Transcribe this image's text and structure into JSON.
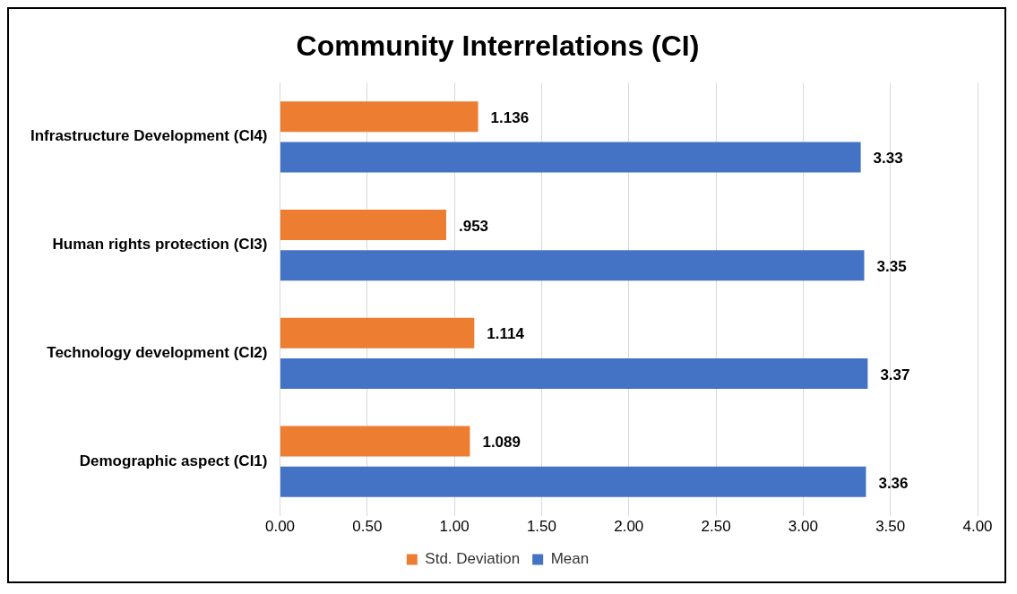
{
  "chart_data": {
    "type": "bar",
    "orientation": "horizontal",
    "title": "Community Interrelations (CI)",
    "categories": [
      "Infrastructure Development (CI4)",
      "Human rights protection (CI3)",
      "Technology development (CI2)",
      "Demographic aspect (CI1)"
    ],
    "series": [
      {
        "name": "Std. Deviation",
        "color": "#ed7d31",
        "values": [
          1.136,
          0.953,
          1.114,
          1.089
        ],
        "value_labels": [
          "1.136",
          ".953",
          "1.114",
          "1.089"
        ]
      },
      {
        "name": "Mean",
        "color": "#4472c4",
        "values": [
          3.33,
          3.35,
          3.37,
          3.36
        ],
        "value_labels": [
          "3.33",
          "3.35",
          "3.37",
          "3.36"
        ]
      }
    ],
    "xlim": [
      0,
      4
    ],
    "xticks": [
      {
        "value": 0,
        "label": "0.00"
      },
      {
        "value": 0.5,
        "label": "0.50"
      },
      {
        "value": 1,
        "label": "1.00"
      },
      {
        "value": 1.5,
        "label": "1.50"
      },
      {
        "value": 2,
        "label": "2.00"
      },
      {
        "value": 2.5,
        "label": "2.50"
      },
      {
        "value": 3,
        "label": "3.00"
      },
      {
        "value": 3.5,
        "label": "3.50"
      },
      {
        "value": 4,
        "label": "4.00"
      }
    ],
    "grid": "x",
    "legend": "bottom"
  }
}
